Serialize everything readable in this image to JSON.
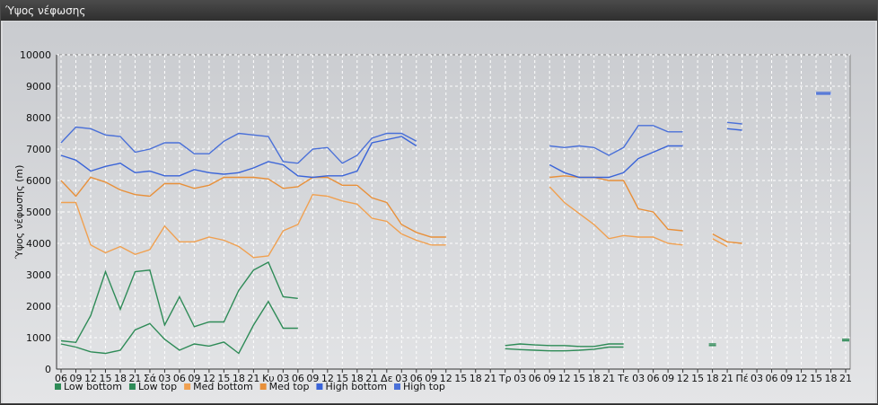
{
  "window": {
    "title": "Ύψος νέφωσης"
  },
  "colors": {
    "low_bottom": "#2e8b57",
    "low_top": "#2e8b57",
    "med_bottom": "#f0a050",
    "med_top": "#e8903a",
    "high_bottom": "#3a64d8",
    "high_top": "#4a70d8",
    "grid": "#ffffff"
  },
  "chart_data": {
    "type": "line",
    "title": "",
    "xlabel": "",
    "ylabel": "Ύψος νέφωσης (m)",
    "ylim": [
      0,
      10000
    ],
    "yticks": [
      0,
      1000,
      2000,
      3000,
      4000,
      5000,
      6000,
      7000,
      8000,
      9000,
      10000
    ],
    "grid": true,
    "legend_position": "bottom-left",
    "categories": [
      "06",
      "09",
      "12",
      "15",
      "18",
      "21",
      "Σά",
      "03",
      "06",
      "09",
      "12",
      "15",
      "18",
      "21",
      "Κυ",
      "03",
      "06",
      "09",
      "12",
      "15",
      "18",
      "21",
      "Δε",
      "03",
      "06",
      "09",
      "12",
      "15",
      "18",
      "21",
      "Τρ",
      "03",
      "06",
      "09",
      "12",
      "15",
      "18",
      "21",
      "Τε",
      "03",
      "06",
      "09",
      "12",
      "15",
      "18",
      "21",
      "Πέ",
      "03",
      "06",
      "09",
      "12",
      "15",
      "18",
      "21"
    ],
    "series": [
      {
        "name": "Low bottom",
        "key": "low_bottom",
        "values": [
          800,
          700,
          550,
          500,
          600,
          1250,
          1450,
          950,
          600,
          800,
          730,
          860,
          500,
          1400,
          2150,
          1300,
          1300,
          null,
          null,
          null,
          null,
          null,
          null,
          null,
          null,
          null,
          null,
          null,
          null,
          null,
          650,
          620,
          600,
          580,
          580,
          600,
          630,
          700,
          700,
          null,
          null,
          null,
          null,
          null,
          750,
          null,
          null,
          null,
          null,
          null,
          null,
          null,
          null,
          900
        ]
      },
      {
        "name": "Low top",
        "key": "low_top",
        "values": [
          900,
          850,
          1700,
          3100,
          1900,
          3100,
          3150,
          1400,
          2300,
          1350,
          1500,
          1500,
          2500,
          3150,
          3400,
          2300,
          2250,
          null,
          null,
          null,
          null,
          null,
          null,
          null,
          null,
          null,
          null,
          null,
          null,
          null,
          750,
          800,
          770,
          750,
          750,
          720,
          720,
          800,
          800,
          null,
          null,
          null,
          null,
          null,
          800,
          null,
          null,
          null,
          null,
          null,
          null,
          null,
          null,
          950
        ]
      },
      {
        "name": "Med bottom",
        "key": "med_bottom",
        "values": [
          5300,
          5300,
          3950,
          3700,
          3900,
          3650,
          3800,
          4550,
          4050,
          4050,
          4200,
          4100,
          3900,
          3550,
          3600,
          4400,
          4600,
          5550,
          5500,
          5350,
          5250,
          4800,
          4700,
          4300,
          4100,
          3950,
          3950,
          null,
          null,
          null,
          null,
          null,
          null,
          5800,
          5300,
          4950,
          4600,
          4150,
          4250,
          4200,
          4200,
          4000,
          3950,
          null,
          4150,
          3900,
          null,
          null,
          null,
          null,
          null,
          null,
          null,
          null
        ]
      },
      {
        "name": "Med top",
        "key": "med_top",
        "values": [
          6000,
          5500,
          6100,
          5950,
          5700,
          5550,
          5500,
          5900,
          5900,
          5750,
          5850,
          6100,
          6100,
          6100,
          6050,
          5750,
          5800,
          6100,
          6100,
          5850,
          5850,
          5450,
          5300,
          4600,
          4350,
          4200,
          4200,
          null,
          null,
          null,
          null,
          null,
          null,
          6100,
          6150,
          6100,
          6100,
          6000,
          6000,
          5100,
          5000,
          4450,
          4400,
          null,
          4300,
          4050,
          4000,
          null,
          null,
          null,
          null,
          null,
          null,
          null
        ]
      },
      {
        "name": "High bottom",
        "key": "high_bottom",
        "values": [
          6800,
          6650,
          6300,
          6450,
          6550,
          6250,
          6300,
          6150,
          6150,
          6350,
          6250,
          6200,
          6250,
          6400,
          6600,
          6500,
          6150,
          6100,
          6150,
          6150,
          6300,
          7200,
          7300,
          7400,
          7100,
          null,
          null,
          null,
          null,
          null,
          null,
          null,
          null,
          6500,
          6250,
          6100,
          6100,
          6100,
          6250,
          6700,
          6900,
          7100,
          7100,
          null,
          null,
          7650,
          7600,
          null,
          null,
          null,
          null,
          8750,
          8750,
          null
        ]
      },
      {
        "name": "High top",
        "key": "high_top",
        "values": [
          7200,
          7700,
          7650,
          7450,
          7400,
          6900,
          7000,
          7200,
          7200,
          6850,
          6850,
          7250,
          7500,
          7450,
          7400,
          6600,
          6550,
          7000,
          7050,
          6550,
          6800,
          7350,
          7500,
          7500,
          7250,
          null,
          null,
          null,
          null,
          null,
          null,
          null,
          null,
          7100,
          7050,
          7100,
          7050,
          6800,
          7050,
          7750,
          7750,
          7550,
          7550,
          null,
          null,
          7850,
          7800,
          null,
          null,
          null,
          null,
          8800,
          8800,
          null
        ]
      }
    ]
  }
}
